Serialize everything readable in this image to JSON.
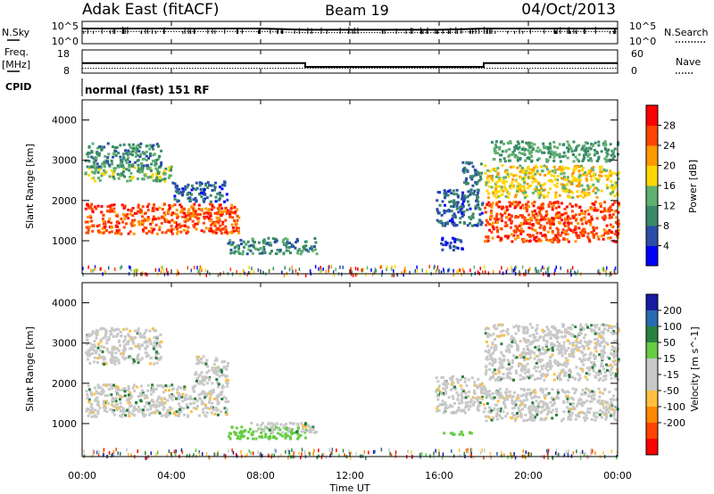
{
  "header": {
    "station": "Adak East (fitACF)",
    "beam": "Beam 19",
    "date": "04/Oct/2013"
  },
  "top_panels": {
    "nsky_label": "N.Sky",
    "nsky_ticks": [
      "10^5",
      "10^0"
    ],
    "nsearch_label": "N.Search",
    "freq_label_1": "Freq.",
    "freq_label_2": "[MHz]",
    "freq_ticks": [
      "18",
      "8"
    ],
    "nave_label": "Nave",
    "nave_ticks": [
      "60",
      "0"
    ],
    "cpid_label": "CPID",
    "cpid_text": "normal (fast) 151 RF"
  },
  "colors": {
    "power_scale": [
      "#0000ff",
      "#2a4ea8",
      "#3a8a68",
      "#60b070",
      "#ffd700",
      "#ff9900",
      "#ff4500",
      "#ff0000"
    ],
    "velocity_scale": [
      "#1a1aa0",
      "#2a6ab0",
      "#2a8040",
      "#66cc44",
      "#c8c8c8",
      "#c8c8c8",
      "#ffc040",
      "#ff8800",
      "#ff4400",
      "#ff0000"
    ]
  },
  "chart_data": [
    {
      "type": "line",
      "panel": "N.Sky / N.Search",
      "x": [
        0,
        2,
        4,
        6,
        8,
        10,
        12,
        14,
        16,
        18,
        20,
        22,
        24
      ],
      "ylim": [
        1,
        100000
      ],
      "yscale": "log",
      "yticks": [
        "10^5",
        "10^0"
      ],
      "series": [
        {
          "name": "N.Sky",
          "values": [
            3000,
            3000,
            3000,
            3000,
            3000,
            1500,
            1500,
            1500,
            1500,
            3000,
            3000,
            3000,
            3000
          ]
        },
        {
          "name": "N.Search",
          "values": [
            600,
            600,
            600,
            600,
            600,
            300,
            300,
            300,
            300,
            600,
            600,
            600,
            600
          ]
        }
      ]
    },
    {
      "type": "line",
      "panel": "Freq. / Nave",
      "x": [
        0,
        10,
        10,
        18,
        18,
        24
      ],
      "series": [
        {
          "name": "Freq.",
          "values": [
            12.3,
            12.3,
            10.5,
            10.5,
            12.3,
            12.3
          ]
        },
        {
          "name": "Nave",
          "values": [
            11,
            11,
            11,
            11,
            11,
            11
          ]
        }
      ],
      "freq_ylim": [
        8,
        18
      ],
      "nave_ylim": [
        0,
        60
      ]
    },
    {
      "type": "heatmap",
      "panel": "Power",
      "xlabel": "",
      "ylabel": "Slant Range [km]",
      "xlim": [
        0,
        24
      ],
      "ylim": [
        180,
        4500
      ],
      "yticks": [
        1000,
        2000,
        3000,
        4000
      ],
      "colorbar": {
        "label": "Power [dB]",
        "ticks": [
          4,
          8,
          12,
          16,
          20,
          24,
          28
        ],
        "range": [
          0,
          32
        ]
      },
      "regions": [
        {
          "t": [
            0.1,
            7.0
          ],
          "r": [
            1200,
            1950
          ],
          "level": 26
        },
        {
          "t": [
            0.1,
            4.0
          ],
          "r": [
            2500,
            2900
          ],
          "level": 14
        },
        {
          "t": [
            0.1,
            3.5
          ],
          "r": [
            2850,
            3450
          ],
          "level": 10
        },
        {
          "t": [
            4.0,
            6.5
          ],
          "r": [
            2000,
            2500
          ],
          "level": 7
        },
        {
          "t": [
            6.5,
            10.5
          ],
          "r": [
            700,
            1100
          ],
          "level": 10
        },
        {
          "t": [
            15.8,
            17.9
          ],
          "r": [
            1400,
            2300
          ],
          "level": 7
        },
        {
          "t": [
            17.0,
            17.9
          ],
          "r": [
            2400,
            3000
          ],
          "level": 8
        },
        {
          "t": [
            18.0,
            24.0
          ],
          "r": [
            1000,
            2000
          ],
          "level": 26
        },
        {
          "t": [
            18.0,
            24.0
          ],
          "r": [
            2100,
            2900
          ],
          "level": 18
        },
        {
          "t": [
            18.3,
            24.0
          ],
          "r": [
            3000,
            3500
          ],
          "level": 12
        },
        {
          "t": [
            16.0,
            17.0
          ],
          "r": [
            800,
            1100
          ],
          "level": 5
        }
      ]
    },
    {
      "type": "heatmap",
      "panel": "Velocity",
      "xlabel": "Time UT",
      "ylabel": "Slant Range [km]",
      "xlim": [
        0,
        24
      ],
      "ylim": [
        180,
        4500
      ],
      "xticks": [
        "00:00",
        "04:00",
        "08:00",
        "12:00",
        "16:00",
        "20:00",
        "00:00"
      ],
      "yticks": [
        1000,
        2000,
        3000,
        4000
      ],
      "colorbar": {
        "label": "Velocity [m s^-1]",
        "ticks": [
          200,
          100,
          50,
          15,
          -15,
          -50,
          -100,
          -200
        ]
      },
      "regions": [
        {
          "t": [
            0.1,
            6.5
          ],
          "r": [
            1200,
            2000
          ],
          "level": 0
        },
        {
          "t": [
            0.1,
            3.5
          ],
          "r": [
            2500,
            3400
          ],
          "level": 0
        },
        {
          "t": [
            5.0,
            6.5
          ],
          "r": [
            2000,
            2700
          ],
          "level": 0
        },
        {
          "t": [
            6.5,
            10.0
          ],
          "r": [
            650,
            950
          ],
          "level": 60
        },
        {
          "t": [
            7.5,
            10.5
          ],
          "r": [
            800,
            1050
          ],
          "level": 0
        },
        {
          "t": [
            15.8,
            18.0
          ],
          "r": [
            1300,
            2200
          ],
          "level": 0
        },
        {
          "t": [
            16.0,
            17.4
          ],
          "r": [
            750,
            850
          ],
          "level": 60
        },
        {
          "t": [
            18.0,
            24.0
          ],
          "r": [
            1100,
            1900
          ],
          "level": 0
        },
        {
          "t": [
            18.0,
            24.0
          ],
          "r": [
            2100,
            3500
          ],
          "level": 0
        }
      ]
    }
  ]
}
